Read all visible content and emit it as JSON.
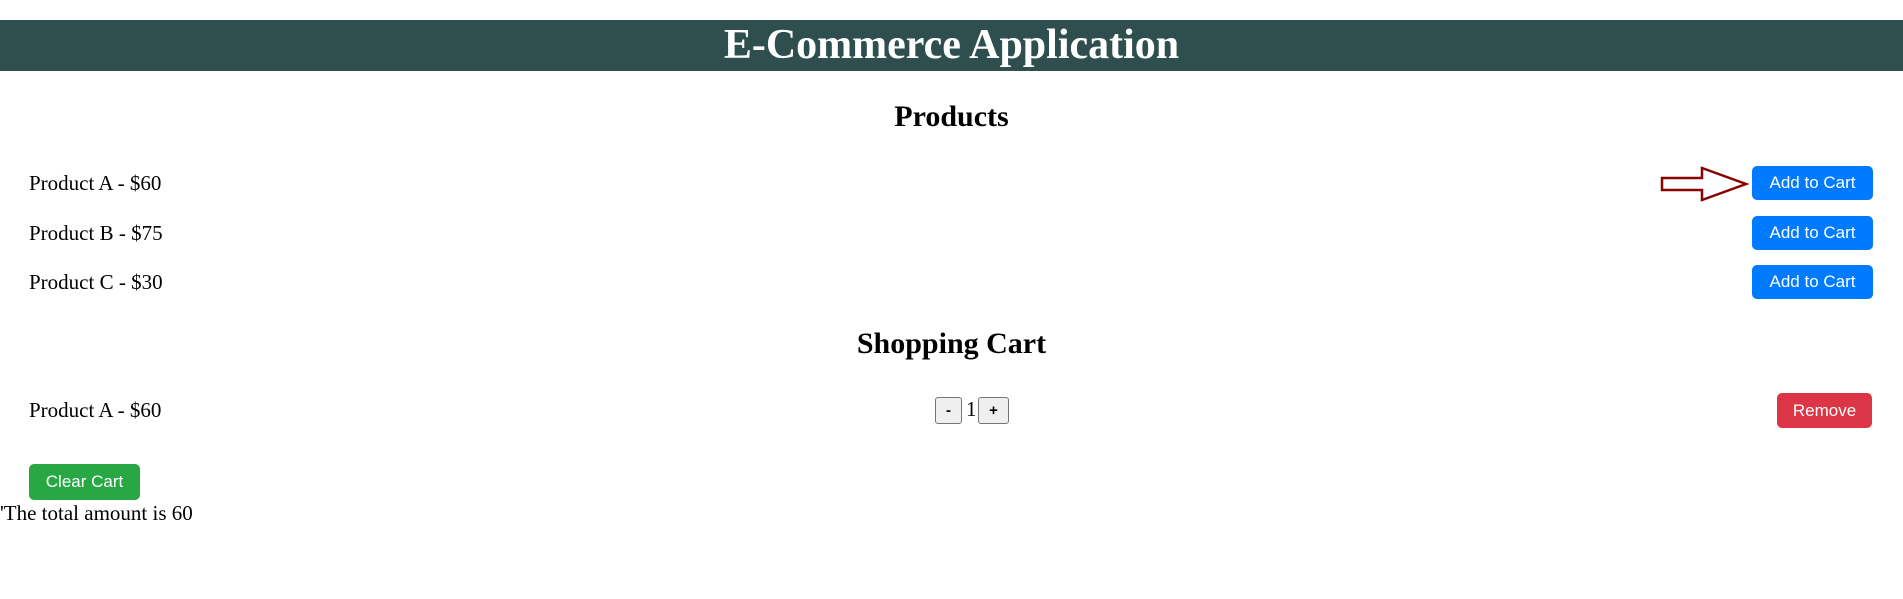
{
  "header": {
    "title": "E-Commerce Application"
  },
  "products": {
    "title": "Products",
    "items": [
      {
        "label": "Product A - $60",
        "button": "Add to Cart"
      },
      {
        "label": "Product B - $75",
        "button": "Add to Cart"
      },
      {
        "label": "Product C - $30",
        "button": "Add to Cart"
      }
    ]
  },
  "cart": {
    "title": "Shopping Cart",
    "items": [
      {
        "label": "Product A - $60",
        "decrement": "-",
        "quantity": "1",
        "increment": "+",
        "remove": "Remove"
      }
    ],
    "clear_label": "Clear Cart",
    "total_text": "'The total amount is 60"
  },
  "annotation": {
    "arrow_color": "#8b0000"
  }
}
